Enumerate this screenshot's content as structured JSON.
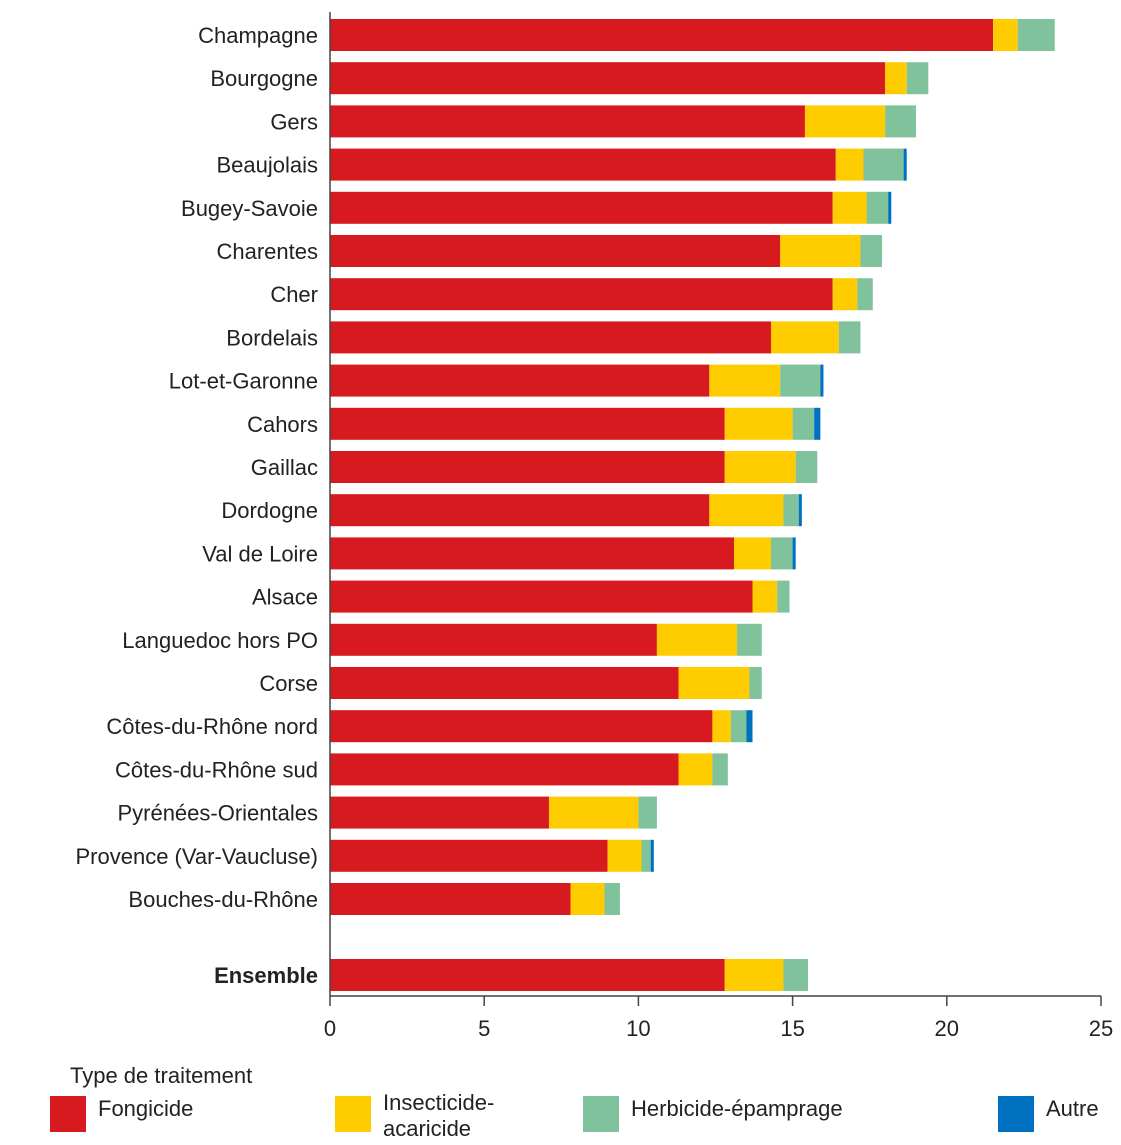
{
  "chart_data": {
    "type": "bar",
    "orientation": "horizontal",
    "stacked": true,
    "title": "",
    "xlabel": "",
    "ylabel": "",
    "xlim": [
      0,
      25
    ],
    "xticks": [
      0,
      5,
      10,
      15,
      20,
      25
    ],
    "grid": false,
    "legend_title": "Type de traitement",
    "legend_position": "bottom",
    "categories": [
      "Champagne",
      "Bourgogne",
      "Gers",
      "Beaujolais",
      "Bugey-Savoie",
      "Charentes",
      "Cher",
      "Bordelais",
      "Lot-et-Garonne",
      "Cahors",
      "Gaillac",
      "Dordogne",
      "Val de Loire",
      "Alsace",
      "Languedoc hors PO",
      "Corse",
      "Côtes-du-Rhône nord",
      "Côtes-du-Rhône sud",
      "Pyrénées-Orientales",
      "Provence (Var-Vaucluse)",
      "Bouches-du-Rhône",
      "Ensemble"
    ],
    "series": [
      {
        "name": "Fongicide",
        "color": "#d71920",
        "values": [
          21.5,
          18.0,
          15.4,
          16.4,
          16.3,
          14.6,
          16.3,
          14.3,
          12.3,
          12.8,
          12.8,
          12.3,
          13.1,
          13.7,
          10.6,
          11.3,
          12.4,
          11.3,
          7.1,
          9.0,
          7.8,
          12.8
        ]
      },
      {
        "name": "Insecticide-acaricide",
        "color": "#ffcc00",
        "values": [
          0.8,
          0.7,
          2.6,
          0.9,
          1.1,
          2.6,
          0.8,
          2.2,
          2.3,
          2.2,
          2.3,
          2.4,
          1.2,
          0.8,
          2.6,
          2.3,
          0.6,
          1.1,
          2.9,
          1.1,
          1.1,
          1.9
        ]
      },
      {
        "name": "Herbicide-épamprage",
        "color": "#7fc29b",
        "values": [
          1.2,
          0.7,
          1.0,
          1.3,
          0.7,
          0.7,
          0.5,
          0.7,
          1.3,
          0.7,
          0.7,
          0.5,
          0.7,
          0.4,
          0.8,
          0.4,
          0.5,
          0.5,
          0.6,
          0.3,
          0.5,
          0.8
        ]
      },
      {
        "name": "Autre",
        "color": "#0070c0",
        "values": [
          0,
          0,
          0,
          0.1,
          0.1,
          0,
          0,
          0,
          0.1,
          0.2,
          0,
          0.1,
          0.1,
          0,
          0,
          0,
          0.2,
          0,
          0,
          0.1,
          0,
          0
        ]
      }
    ]
  }
}
